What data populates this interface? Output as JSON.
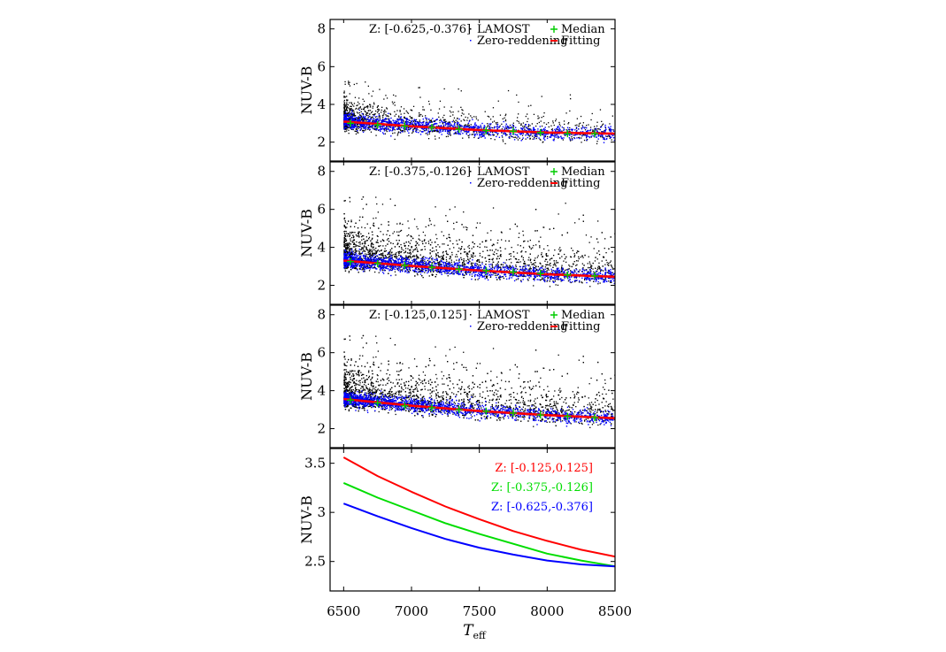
{
  "chart_data": [
    {
      "type": "scatter",
      "panel": "top",
      "annotation": "Z: [-0.625,-0.376]",
      "ylabel": "NUV-B",
      "xlim": [
        6400,
        8500
      ],
      "ylim": [
        1,
        8.5
      ],
      "yticks": [
        2,
        4,
        6,
        8
      ],
      "legend": [
        "LAMOST",
        "Median",
        "Zero-reddening",
        "Fitting"
      ],
      "colors": {
        "lamost": "#000000",
        "median": "#00cc00",
        "zero": "#0000ff",
        "fit": "#ff0000"
      },
      "median_x": [
        6550,
        6750,
        6950,
        7150,
        7350,
        7550,
        7750,
        7950,
        8150,
        8350
      ],
      "median_y": [
        3.0,
        2.92,
        2.85,
        2.78,
        2.68,
        2.62,
        2.58,
        2.5,
        2.45,
        2.45
      ],
      "fit": [
        [
          6500,
          3.09
        ],
        [
          7000,
          2.84
        ],
        [
          7500,
          2.64
        ],
        [
          8000,
          2.51
        ],
        [
          8500,
          2.45
        ]
      ],
      "lamost_upper_spread": 1.4,
      "density": "high-at-low-Teff"
    },
    {
      "type": "scatter",
      "panel": "middle",
      "annotation": "Z: [-0.375,-0.126]",
      "ylabel": "NUV-B",
      "xlim": [
        6400,
        8500
      ],
      "ylim": [
        1,
        8.5
      ],
      "yticks": [
        2,
        4,
        6,
        8
      ],
      "legend": [
        "LAMOST",
        "Median",
        "Zero-reddening",
        "Fitting"
      ],
      "colors": {
        "lamost": "#000000",
        "median": "#00cc00",
        "zero": "#0000ff",
        "fit": "#ff0000"
      },
      "median_x": [
        6550,
        6750,
        6950,
        7150,
        7350,
        7550,
        7750,
        7950,
        8150,
        8350
      ],
      "median_y": [
        3.25,
        3.15,
        3.05,
        2.95,
        2.85,
        2.78,
        2.7,
        2.62,
        2.55,
        2.5
      ],
      "fit": [
        [
          6500,
          3.3
        ],
        [
          7000,
          3.02
        ],
        [
          7500,
          2.78
        ],
        [
          8000,
          2.58
        ],
        [
          8500,
          2.45
        ]
      ],
      "lamost_upper_spread": 2.2,
      "density": "high"
    },
    {
      "type": "scatter",
      "panel": "lower",
      "annotation": "Z: [-0.125,0.125]",
      "ylabel": "NUV-B",
      "xlim": [
        6400,
        8500
      ],
      "ylim": [
        1,
        8.5
      ],
      "yticks": [
        2,
        4,
        6,
        8
      ],
      "legend": [
        "LAMOST",
        "Median",
        "Zero-reddening",
        "Fitting"
      ],
      "colors": {
        "lamost": "#000000",
        "median": "#00cc00",
        "zero": "#0000ff",
        "fit": "#ff0000"
      },
      "median_x": [
        6550,
        6750,
        6950,
        7150,
        7350,
        7550,
        7750,
        7950,
        8150,
        8350
      ],
      "median_y": [
        3.5,
        3.35,
        3.2,
        3.1,
        3.0,
        2.92,
        2.82,
        2.72,
        2.65,
        2.58
      ],
      "fit": [
        [
          6500,
          3.56
        ],
        [
          7000,
          3.21
        ],
        [
          7500,
          2.93
        ],
        [
          8000,
          2.71
        ],
        [
          8500,
          2.55
        ]
      ],
      "lamost_upper_spread": 2.2,
      "density": "high"
    },
    {
      "type": "line",
      "panel": "bottom",
      "ylabel": "NUV-B",
      "xlabel": "T",
      "xlabel_sub": "eff",
      "xlim": [
        6400,
        8500
      ],
      "ylim": [
        2.2,
        3.65
      ],
      "yticks": [
        2.5,
        3,
        3.5
      ],
      "yticklabels": [
        "2.5",
        "3",
        "3.5"
      ],
      "xticks": [
        6500,
        7000,
        7500,
        8000,
        8500
      ],
      "series": [
        {
          "name": "Z: [-0.125,0.125]",
          "color": "#ff0000",
          "x": [
            6500,
            6750,
            7000,
            7250,
            7500,
            7750,
            8000,
            8250,
            8500
          ],
          "y": [
            3.56,
            3.37,
            3.21,
            3.06,
            2.93,
            2.81,
            2.71,
            2.62,
            2.55
          ]
        },
        {
          "name": "Z: [-0.375,-0.126]",
          "color": "#00dd00",
          "x": [
            6500,
            6750,
            7000,
            7250,
            7500,
            7750,
            8000,
            8250,
            8500
          ],
          "y": [
            3.3,
            3.15,
            3.02,
            2.89,
            2.78,
            2.68,
            2.58,
            2.51,
            2.45
          ]
        },
        {
          "name": "Z: [-0.625,-0.376]",
          "color": "#0000ff",
          "x": [
            6500,
            6750,
            7000,
            7250,
            7500,
            7750,
            8000,
            8250,
            8500
          ],
          "y": [
            3.09,
            2.96,
            2.84,
            2.73,
            2.64,
            2.57,
            2.51,
            2.47,
            2.45
          ]
        }
      ]
    }
  ]
}
